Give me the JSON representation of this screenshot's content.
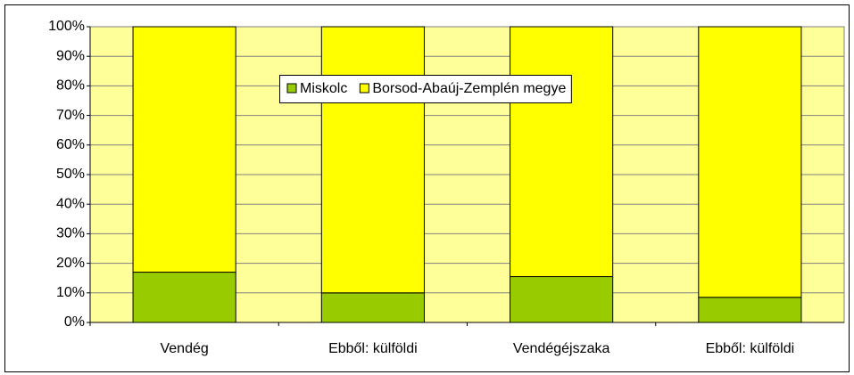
{
  "chart_data": {
    "type": "stacked_bar",
    "categories": [
      "Vendég",
      "Ebből: külföldi",
      "Vendégéjszaka",
      "Ebből: külföldi"
    ],
    "series": [
      {
        "name": "Miskolc",
        "color": "#99cc00",
        "values": [
          17,
          10,
          15.5,
          8.5
        ]
      },
      {
        "name": "Borsod-Abaúj-Zemplén megye",
        "color": "#ffff00",
        "values": [
          83,
          90,
          84.5,
          91.5
        ]
      }
    ],
    "ylim": [
      0,
      100
    ],
    "yticks": [
      {
        "value": 0,
        "label": "0%"
      },
      {
        "value": 10,
        "label": "10%"
      },
      {
        "value": 20,
        "label": "20%"
      },
      {
        "value": 30,
        "label": "30%"
      },
      {
        "value": 40,
        "label": "40%"
      },
      {
        "value": 50,
        "label": "50%"
      },
      {
        "value": 60,
        "label": "60%"
      },
      {
        "value": 70,
        "label": "70%"
      },
      {
        "value": 80,
        "label": "80%"
      },
      {
        "value": 90,
        "label": "90%"
      },
      {
        "value": 100,
        "label": "100%"
      }
    ],
    "grid": true,
    "plot_background": "#ffff99"
  }
}
